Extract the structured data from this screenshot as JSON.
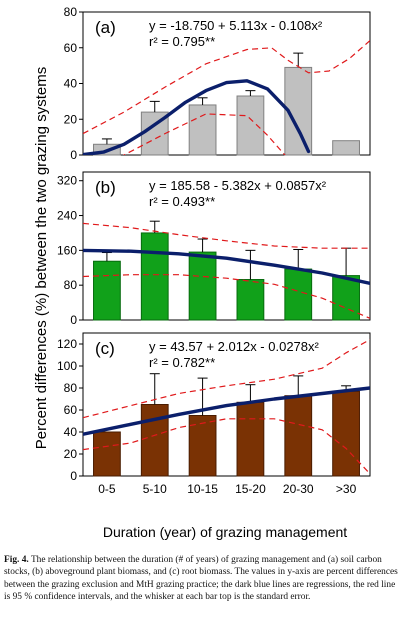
{
  "figure": {
    "ylabel": "Percent differences (%) between the two grazing systems",
    "xlabel": "Duration (year) of grazing management",
    "caption_label": "Fig. 4.",
    "caption_text": "The relationship between the duration (# of years) of grazing management and (a) soil carbon stocks, (b) aboveground plant biomass, and (c) root biomass. The values in y-axis are percent differences between the grazing exclusion and MtH grazing practice; the dark blue lines are regressions, the red line is 95 % confidence intervals, and the whisker at each bar top is the standard error."
  },
  "chart_data": [
    {
      "type": "bar",
      "panel_label": "(a)",
      "equation": "y = -18.750 + 5.113x - 0.108x²",
      "r2": "r² = 0.795**",
      "categories": [
        "0-5",
        "5-10",
        "10-15",
        "15-20",
        "20-30",
        ">30"
      ],
      "values": [
        6,
        24,
        28,
        33,
        49,
        8
      ],
      "errors": [
        3,
        6,
        4,
        3,
        8,
        0
      ],
      "ylim": [
        0,
        80
      ],
      "yticks": [
        "0",
        "20",
        "40",
        "60",
        "80"
      ],
      "bar_color": "#c0c0c0",
      "bar_stroke": "#808080",
      "regression": [
        [
          0,
          0.2
        ],
        [
          0.5,
          1.6
        ],
        [
          1,
          6
        ],
        [
          1.5,
          13
        ],
        [
          2,
          21
        ],
        [
          2.5,
          29.5
        ],
        [
          3,
          36
        ],
        [
          3.5,
          40.5
        ],
        [
          4,
          41.5
        ],
        [
          4.5,
          37
        ],
        [
          5,
          25
        ],
        [
          5.3,
          12
        ],
        [
          5.5,
          2
        ]
      ],
      "ci_upper": [
        [
          0,
          12
        ],
        [
          1,
          24
        ],
        [
          2,
          38
        ],
        [
          3,
          51
        ],
        [
          4,
          59
        ],
        [
          4.6,
          60
        ],
        [
          5,
          53
        ],
        [
          5.5,
          46
        ],
        [
          6,
          47
        ],
        [
          6.5,
          54
        ],
        [
          7,
          64
        ]
      ],
      "ci_lower": [
        [
          0,
          -10
        ],
        [
          1,
          0
        ],
        [
          2,
          12
        ],
        [
          3,
          23
        ],
        [
          4,
          22
        ],
        [
          4.5,
          11
        ],
        [
          5,
          -2
        ]
      ],
      "x_range": [
        0,
        7
      ]
    },
    {
      "type": "bar",
      "panel_label": "(b)",
      "equation": "y = 185.58 - 5.382x + 0.0857x²",
      "r2": "r² = 0.493**",
      "categories": [
        "0-5",
        "5-10",
        "10-15",
        "15-20",
        "20-30",
        ">30"
      ],
      "values": [
        135,
        200,
        156,
        93,
        117,
        102
      ],
      "errors": [
        20,
        27,
        30,
        67,
        45,
        63
      ],
      "ylim": [
        0,
        340
      ],
      "yticks": [
        "0",
        "80",
        "160",
        "240",
        "320"
      ],
      "bar_color": "#11a11a",
      "bar_stroke": "#066b0d",
      "regression": [
        [
          0,
          160
        ],
        [
          1,
          158
        ],
        [
          2,
          152
        ],
        [
          3,
          142
        ],
        [
          4,
          126
        ],
        [
          5,
          108
        ],
        [
          6,
          84
        ]
      ],
      "ci_upper": [
        [
          0,
          222
        ],
        [
          1,
          212
        ],
        [
          2,
          196
        ],
        [
          3,
          182
        ],
        [
          4,
          170
        ],
        [
          5,
          165
        ],
        [
          6,
          165
        ]
      ],
      "ci_lower": [
        [
          0,
          100
        ],
        [
          1,
          104
        ],
        [
          2,
          104
        ],
        [
          3,
          96
        ],
        [
          4,
          82
        ],
        [
          5,
          50
        ],
        [
          6,
          4
        ]
      ],
      "x_range": [
        0,
        6
      ]
    },
    {
      "type": "bar",
      "panel_label": "(c)",
      "equation": "y = 43.57 + 2.012x - 0.0278x²",
      "r2": "r² = 0.782**",
      "categories": [
        "0-5",
        "5-10",
        "10-15",
        "15-20",
        "20-30",
        ">30"
      ],
      "values": [
        40,
        65,
        55,
        67,
        73,
        77
      ],
      "errors": [
        0,
        28,
        34,
        16,
        18,
        5
      ],
      "ylim": [
        0,
        130
      ],
      "yticks": [
        "0",
        "20",
        "40",
        "60",
        "80",
        "100",
        "120"
      ],
      "bar_color": "#7a3204",
      "bar_stroke": "#4a1c00",
      "regression": [
        [
          0,
          38
        ],
        [
          1,
          47
        ],
        [
          2,
          56
        ],
        [
          3,
          64
        ],
        [
          4,
          70
        ],
        [
          5,
          75
        ],
        [
          6,
          80
        ]
      ],
      "ci_upper": [
        [
          0,
          53
        ],
        [
          1,
          64
        ],
        [
          2,
          75
        ],
        [
          3,
          82
        ],
        [
          4,
          88
        ],
        [
          5,
          98
        ],
        [
          5.5,
          112
        ],
        [
          6,
          124
        ]
      ],
      "ci_lower": [
        [
          0,
          24
        ],
        [
          1,
          30
        ],
        [
          2,
          44
        ],
        [
          3,
          52
        ],
        [
          4,
          52
        ],
        [
          5,
          42
        ],
        [
          5.5,
          25
        ],
        [
          6,
          2
        ]
      ],
      "x_range": [
        0,
        6
      ]
    }
  ]
}
